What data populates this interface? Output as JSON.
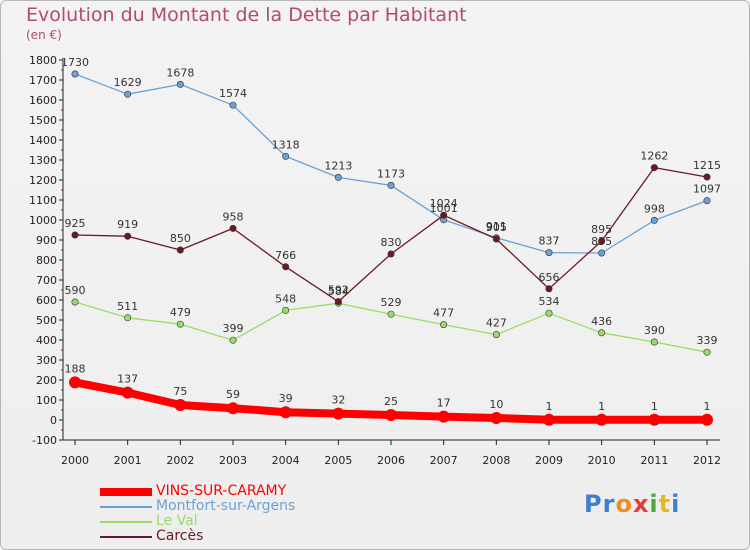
{
  "header": {
    "title": "Evolution du Montant de la Dette par Habitant",
    "unit": "(en €)"
  },
  "colors": {
    "title": "#b14a77",
    "axis": "#222222",
    "grid_bg": "#eeeeee"
  },
  "chart_data": {
    "type": "line",
    "x": [
      "2000",
      "2001",
      "2002",
      "2003",
      "2004",
      "2005",
      "2006",
      "2007",
      "2008",
      "2009",
      "2010",
      "2011",
      "2012"
    ],
    "ylim": [
      -100,
      1800
    ],
    "yticks": [
      -100,
      0,
      100,
      200,
      300,
      400,
      500,
      600,
      700,
      800,
      900,
      1000,
      1100,
      1200,
      1300,
      1400,
      1500,
      1600,
      1700,
      1800
    ],
    "grid": false,
    "legend_position": "bottom-left",
    "series": [
      {
        "name": "VINS-SUR-CARAMY",
        "color": "#ff0000",
        "thick": true,
        "values": [
          188,
          137,
          75,
          59,
          39,
          32,
          25,
          17,
          10,
          1,
          1,
          1,
          1
        ]
      },
      {
        "name": "Montfort-sur-Argens",
        "color": "#6aa2d6",
        "thick": false,
        "values": [
          1730,
          1629,
          1678,
          1574,
          1318,
          1213,
          1173,
          1001,
          911,
          837,
          835,
          998,
          1097
        ]
      },
      {
        "name": "Le Val",
        "color": "#99dd66",
        "thick": false,
        "values": [
          590,
          511,
          479,
          399,
          548,
          584,
          529,
          477,
          427,
          534,
          436,
          390,
          339
        ]
      },
      {
        "name": "Carcès",
        "color": "#6b1a24",
        "thick": false,
        "values": [
          925,
          919,
          850,
          958,
          766,
          592,
          830,
          1024,
          905,
          656,
          895,
          1262,
          1215
        ]
      }
    ]
  },
  "logo": {
    "letters": [
      "P",
      "r",
      "o",
      "x",
      "i",
      "t",
      "i"
    ],
    "colors": [
      "#3d7fd0",
      "#3d7fd0",
      "#f28c1e",
      "#e43b3b",
      "#4aa83e",
      "#e6b820",
      "#3d7fd0"
    ]
  }
}
